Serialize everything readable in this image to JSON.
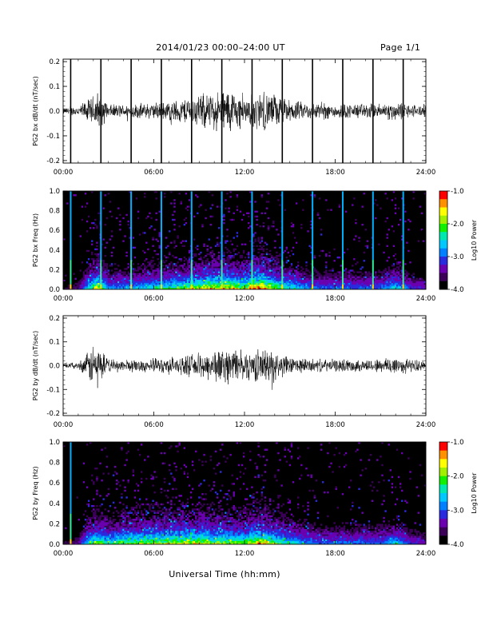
{
  "header": {
    "title": "2014/01/23  00:00–24:00 UT",
    "page": "Page 1/1"
  },
  "x_axis_title": "Universal Time (hh:mm)",
  "chart_data": [
    {
      "type": "line",
      "name": "bx-waveform",
      "ylabel": "PG2 bx dB/dt (nT/sec)",
      "xlim": [
        0,
        24
      ],
      "ylim": [
        -0.21,
        0.21
      ],
      "x_ticks": [
        "00:00",
        "06:00",
        "12:00",
        "18:00",
        "24:00"
      ],
      "y_ticks": [
        "0.2",
        "0.1",
        "0.0",
        "-0.1",
        "-0.2"
      ],
      "y_tick_values": [
        0.2,
        0.1,
        0.0,
        -0.1,
        -0.2
      ],
      "calibration_spikes_hours": [
        0.5,
        2.5,
        4.5,
        6.5,
        8.5,
        10.5,
        12.5,
        14.5,
        16.5,
        18.5,
        20.5,
        22.5
      ],
      "envelope": {
        "x": [
          0,
          1,
          1.8,
          2.3,
          3,
          4,
          5,
          6,
          7,
          8,
          9,
          10,
          11,
          11.5,
          12,
          12.5,
          13,
          14,
          15,
          16,
          17,
          18,
          19,
          20,
          21,
          22,
          23,
          24
        ],
        "amplitude": [
          0.015,
          0.025,
          0.06,
          0.095,
          0.03,
          0.03,
          0.035,
          0.04,
          0.045,
          0.06,
          0.08,
          0.085,
          0.11,
          0.09,
          0.06,
          0.08,
          0.09,
          0.08,
          0.05,
          0.04,
          0.04,
          0.035,
          0.035,
          0.035,
          0.035,
          0.045,
          0.03,
          0.03
        ]
      }
    },
    {
      "type": "heatmap",
      "name": "bx-spectrogram",
      "ylabel": "PG2 bx Freq (Hz)",
      "xlim": [
        0,
        24
      ],
      "ylim": [
        0,
        1.0
      ],
      "x_ticks": [
        "00:00",
        "06:00",
        "12:00",
        "18:00",
        "24:00"
      ],
      "y_ticks": [
        "1.0",
        "0.8",
        "0.6",
        "0.4",
        "0.2",
        "0.0"
      ],
      "y_tick_values": [
        1.0,
        0.8,
        0.6,
        0.4,
        0.2,
        0.0
      ],
      "colorbar": {
        "label": "Log10 Power",
        "ticks": [
          "-1.0",
          "-2.0",
          "-3.0",
          "-4.0"
        ],
        "tick_values": [
          -1,
          -2,
          -3,
          -4
        ],
        "range": [
          -4,
          -1
        ]
      },
      "calibration_lines_hours": [
        0.5,
        2.5,
        4.5,
        6.5,
        8.5,
        10.5,
        12.5,
        14.5,
        16.5,
        18.5,
        20.5,
        22.5
      ],
      "activity": {
        "x": [
          0,
          1,
          1.8,
          2.3,
          3,
          4,
          5,
          6,
          7,
          8,
          9,
          10,
          11,
          12,
          12.5,
          13,
          14,
          15,
          16,
          17,
          18,
          19,
          20,
          21,
          22,
          23,
          24
        ],
        "level": [
          0.1,
          0.15,
          0.5,
          0.7,
          0.35,
          0.35,
          0.4,
          0.45,
          0.5,
          0.55,
          0.65,
          0.7,
          0.7,
          0.6,
          0.75,
          0.8,
          0.6,
          0.45,
          0.35,
          0.3,
          0.3,
          0.3,
          0.3,
          0.3,
          0.45,
          0.25,
          0.2
        ]
      }
    },
    {
      "type": "line",
      "name": "by-waveform",
      "ylabel": "PG2 by dB/dt (nT/sec)",
      "xlim": [
        0,
        24
      ],
      "ylim": [
        -0.21,
        0.21
      ],
      "x_ticks": [
        "00:00",
        "06:00",
        "12:00",
        "18:00",
        "24:00"
      ],
      "y_ticks": [
        "0.2",
        "0.1",
        "0.0",
        "-0.1",
        "-0.2"
      ],
      "y_tick_values": [
        0.2,
        0.1,
        0.0,
        -0.1,
        -0.2
      ],
      "envelope": {
        "x": [
          0,
          1,
          1.6,
          2.0,
          2.5,
          3,
          4,
          5,
          6,
          7,
          8,
          9,
          10,
          11,
          12,
          12.5,
          13,
          14,
          15,
          16,
          17,
          18,
          19,
          20,
          21,
          22,
          23,
          24
        ],
        "amplitude": [
          0.012,
          0.015,
          0.06,
          0.11,
          0.08,
          0.03,
          0.03,
          0.03,
          0.035,
          0.04,
          0.045,
          0.06,
          0.08,
          0.085,
          0.07,
          0.075,
          0.08,
          0.075,
          0.04,
          0.035,
          0.03,
          0.03,
          0.03,
          0.03,
          0.035,
          0.05,
          0.03,
          0.025
        ]
      }
    },
    {
      "type": "heatmap",
      "name": "by-spectrogram",
      "ylabel": "PG2 by Freq (Hz)",
      "xlim": [
        0,
        24
      ],
      "ylim": [
        0,
        1.0
      ],
      "x_ticks": [
        "00:00",
        "06:00",
        "12:00",
        "18:00",
        "24:00"
      ],
      "y_ticks": [
        "1.0",
        "0.8",
        "0.6",
        "0.4",
        "0.2",
        "0.0"
      ],
      "y_tick_values": [
        1.0,
        0.8,
        0.6,
        0.4,
        0.2,
        0.0
      ],
      "colorbar": {
        "label": "Log10 Power",
        "ticks": [
          "-1.0",
          "-2.0",
          "-3.0",
          "-4.0"
        ],
        "tick_values": [
          -1,
          -2,
          -3,
          -4
        ],
        "range": [
          -4,
          -1
        ]
      },
      "calibration_lines_hours": [
        0.5
      ],
      "activity": {
        "x": [
          0,
          1,
          1.8,
          2.3,
          3,
          4,
          5,
          6,
          7,
          8,
          9,
          10,
          11,
          12,
          12.5,
          13,
          14,
          15,
          16,
          17,
          18,
          19,
          20,
          21,
          22,
          23,
          24
        ],
        "level": [
          0.1,
          0.15,
          0.5,
          0.6,
          0.45,
          0.55,
          0.6,
          0.6,
          0.6,
          0.65,
          0.65,
          0.6,
          0.6,
          0.55,
          0.7,
          0.7,
          0.55,
          0.45,
          0.35,
          0.3,
          0.3,
          0.3,
          0.3,
          0.3,
          0.4,
          0.25,
          0.2
        ]
      }
    }
  ],
  "colors": {
    "background": "#ffffff",
    "axes": "#000000",
    "trace": "#000000",
    "spectro_bg": "#000000",
    "colormap": [
      "#000000",
      "#3b0058",
      "#6a00b0",
      "#2a2adf",
      "#0080ff",
      "#00c8ff",
      "#00e8b0",
      "#10f000",
      "#a0f000",
      "#ffff00",
      "#ff9000",
      "#ff0000"
    ]
  }
}
